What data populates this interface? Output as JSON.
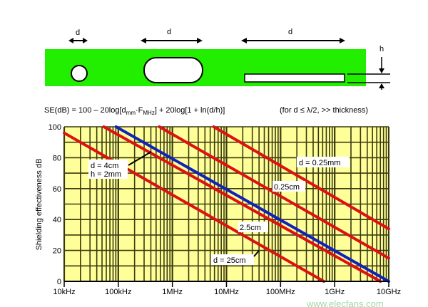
{
  "diagram": {
    "aperture_labels": [
      "d",
      "d",
      "d"
    ],
    "thickness_label": "h",
    "colors": {
      "plate": "#22ee00",
      "aperture": "#ffffff"
    }
  },
  "formula": "SE(dB) = 100 – 20log[d",
  "formula_sub1": "mm",
  "formula_mid": "·F",
  "formula_sub2": "MHz",
  "formula_end": "] + 20log[1 + ln(d/h)]",
  "formula_condition": "(for d ≤ λ/2, >> thickness)",
  "chart_data": {
    "type": "line",
    "x_scale": "log",
    "xlim_hz": [
      10000,
      10000000000
    ],
    "ylim": [
      0,
      100
    ],
    "ylabel": "Shielding effectiveness dB",
    "x_ticks": [
      {
        "value": 10000,
        "label": "10kHz"
      },
      {
        "value": 100000,
        "label": "100kHz"
      },
      {
        "value": 1000000,
        "label": "1MHz"
      },
      {
        "value": 10000000,
        "label": "10MHz"
      },
      {
        "value": 100000000,
        "label": "100MHz"
      },
      {
        "value": 1000000000,
        "label": "1GHz"
      },
      {
        "value": 10000000000,
        "label": "10GHz"
      }
    ],
    "y_ticks": [
      0,
      20,
      40,
      60,
      80,
      100
    ],
    "grid": true,
    "colors": {
      "background": "#ffff99",
      "grid": "#3a3a10",
      "red": "#dd1111",
      "blue": "#1122bb"
    },
    "series": [
      {
        "label": "d = 25cm",
        "color": "#dd1111",
        "points": [
          [
            10000,
            96
          ],
          [
            630000000,
            0
          ]
        ]
      },
      {
        "label": "2.5cm",
        "color": "#dd1111",
        "points": [
          [
            54000,
            100
          ],
          [
            7000000000,
            0
          ]
        ]
      },
      {
        "label": "d = 4cm h = 2mm",
        "color": "#1122bb",
        "points": [
          [
            91000,
            100
          ],
          [
            10000000000,
            0
          ]
        ]
      },
      {
        "label": "0.25cm",
        "color": "#dd1111",
        "points": [
          [
            575000,
            100
          ],
          [
            10000000000,
            15
          ]
        ]
      },
      {
        "label": "d = 0.25mm",
        "color": "#dd1111",
        "points": [
          [
            5800000,
            100
          ],
          [
            10000000000,
            34
          ]
        ]
      }
    ],
    "annotations": {
      "blue_line_1": "d = 4cm",
      "blue_line_2": "h = 2mm",
      "a": "d = 0.25mm",
      "b": "0.25cm",
      "c": "2.5cm",
      "d": "d = 25cm"
    }
  },
  "watermark": "www.elecfans.com"
}
